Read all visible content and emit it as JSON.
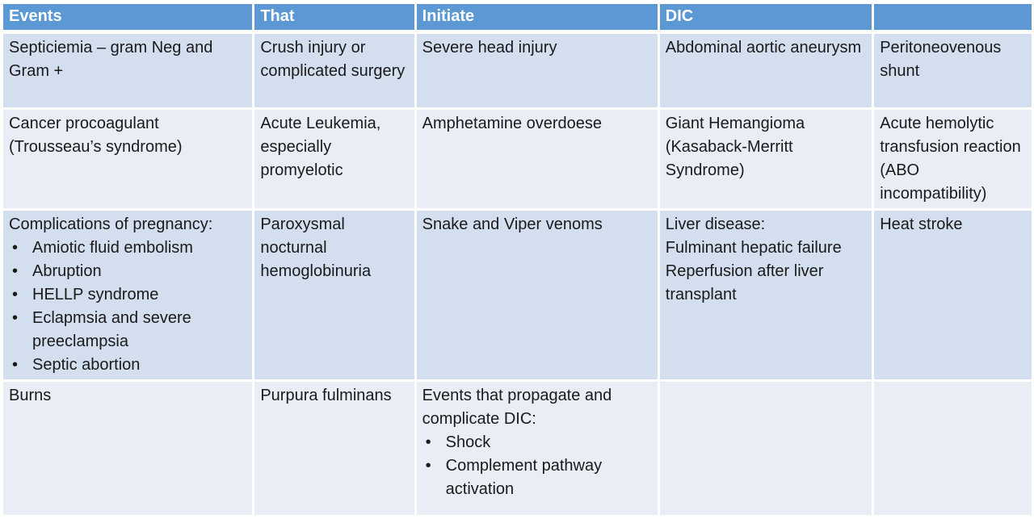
{
  "colors": {
    "header_bg": "#5B98D4",
    "row_band_a": "#D3DEEF",
    "row_band_b": "#E9EDF5",
    "header_text": "#FFFFFF",
    "body_text": "#1A1A1A",
    "background": "#FFFFFF"
  },
  "bullet_char": "•",
  "table": {
    "header": [
      "Events",
      "That",
      "Initiate",
      "DIC",
      ""
    ],
    "rows": [
      {
        "cells": [
          {
            "lines": [
              "Septiciemia – gram Neg and Gram +"
            ]
          },
          {
            "lines": [
              "Crush injury or complicated surgery"
            ]
          },
          {
            "lines": [
              "Severe head injury"
            ]
          },
          {
            "lines": [
              "Abdominal aortic aneurysm"
            ]
          },
          {
            "lines": [
              "Peritoneovenous shunt"
            ]
          }
        ]
      },
      {
        "cells": [
          {
            "lines": [
              "Cancer procoagulant (Trousseau’s syndrome)"
            ]
          },
          {
            "lines": [
              "Acute Leukemia, especially promyelotic"
            ]
          },
          {
            "lines": [
              "Amphetamine overdoese"
            ]
          },
          {
            "lines": [
              "Giant Hemangioma (Kasaback-Merritt Syndrome)"
            ]
          },
          {
            "lines": [
              "Acute hemolytic transfusion reaction (ABO incompatibility)"
            ]
          }
        ]
      },
      {
        "cells": [
          {
            "lines": [
              "Complications of pregnancy:"
            ],
            "bullets": [
              "Amiotic fluid embolism",
              "Abruption",
              "HELLP syndrome",
              "Eclapmsia and severe preeclampsia",
              "Septic abortion"
            ]
          },
          {
            "lines": [
              "Paroxysmal nocturnal hemoglobinuria"
            ]
          },
          {
            "lines": [
              "Snake and Viper venoms"
            ]
          },
          {
            "lines": [
              "Liver disease:",
              "Fulminant hepatic failure",
              "Reperfusion after liver transplant"
            ]
          },
          {
            "lines": [
              "Heat stroke"
            ]
          }
        ]
      },
      {
        "cells": [
          {
            "lines": [
              "Burns"
            ]
          },
          {
            "lines": [
              "Purpura fulminans"
            ]
          },
          {
            "lines": [
              "Events that propagate and complicate DIC:"
            ],
            "bullets": [
              "Shock",
              "Complement pathway activation"
            ]
          },
          {
            "lines": []
          },
          {
            "lines": []
          }
        ]
      }
    ]
  }
}
